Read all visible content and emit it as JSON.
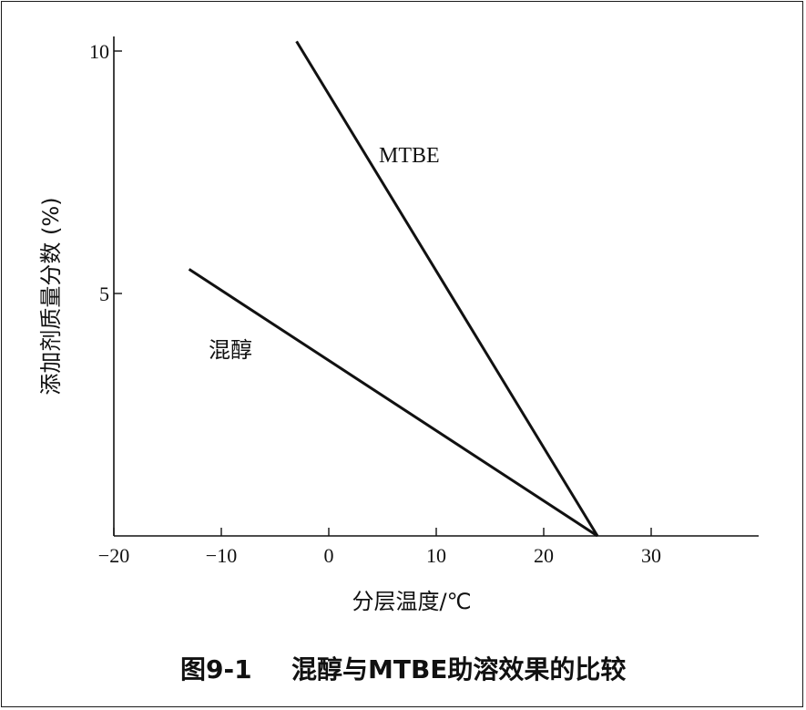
{
  "chart_data": {
    "type": "line",
    "caption_number": "图9-1",
    "caption_text": "混醇与MTBE助溶效果的比较",
    "xlabel": "分层温度/℃",
    "ylabel": "添加剂质量分数 (%)",
    "xlim": [
      -20,
      40
    ],
    "ylim": [
      0,
      10
    ],
    "x_ticks": [
      -20,
      -10,
      0,
      10,
      20,
      30
    ],
    "x_tick_labels": [
      "−20",
      "−10",
      "0",
      "10",
      "20",
      "30"
    ],
    "y_ticks": [
      5,
      10
    ],
    "y_tick_labels": [
      "5",
      "10"
    ],
    "grid": false,
    "series": [
      {
        "name": "MTBE",
        "x": [
          -3,
          25
        ],
        "y": [
          10.2,
          0
        ]
      },
      {
        "name": "混醇",
        "x": [
          -13,
          25
        ],
        "y": [
          5.5,
          0
        ]
      }
    ],
    "colors": {
      "line": "#111111",
      "axis": "#111111"
    }
  }
}
